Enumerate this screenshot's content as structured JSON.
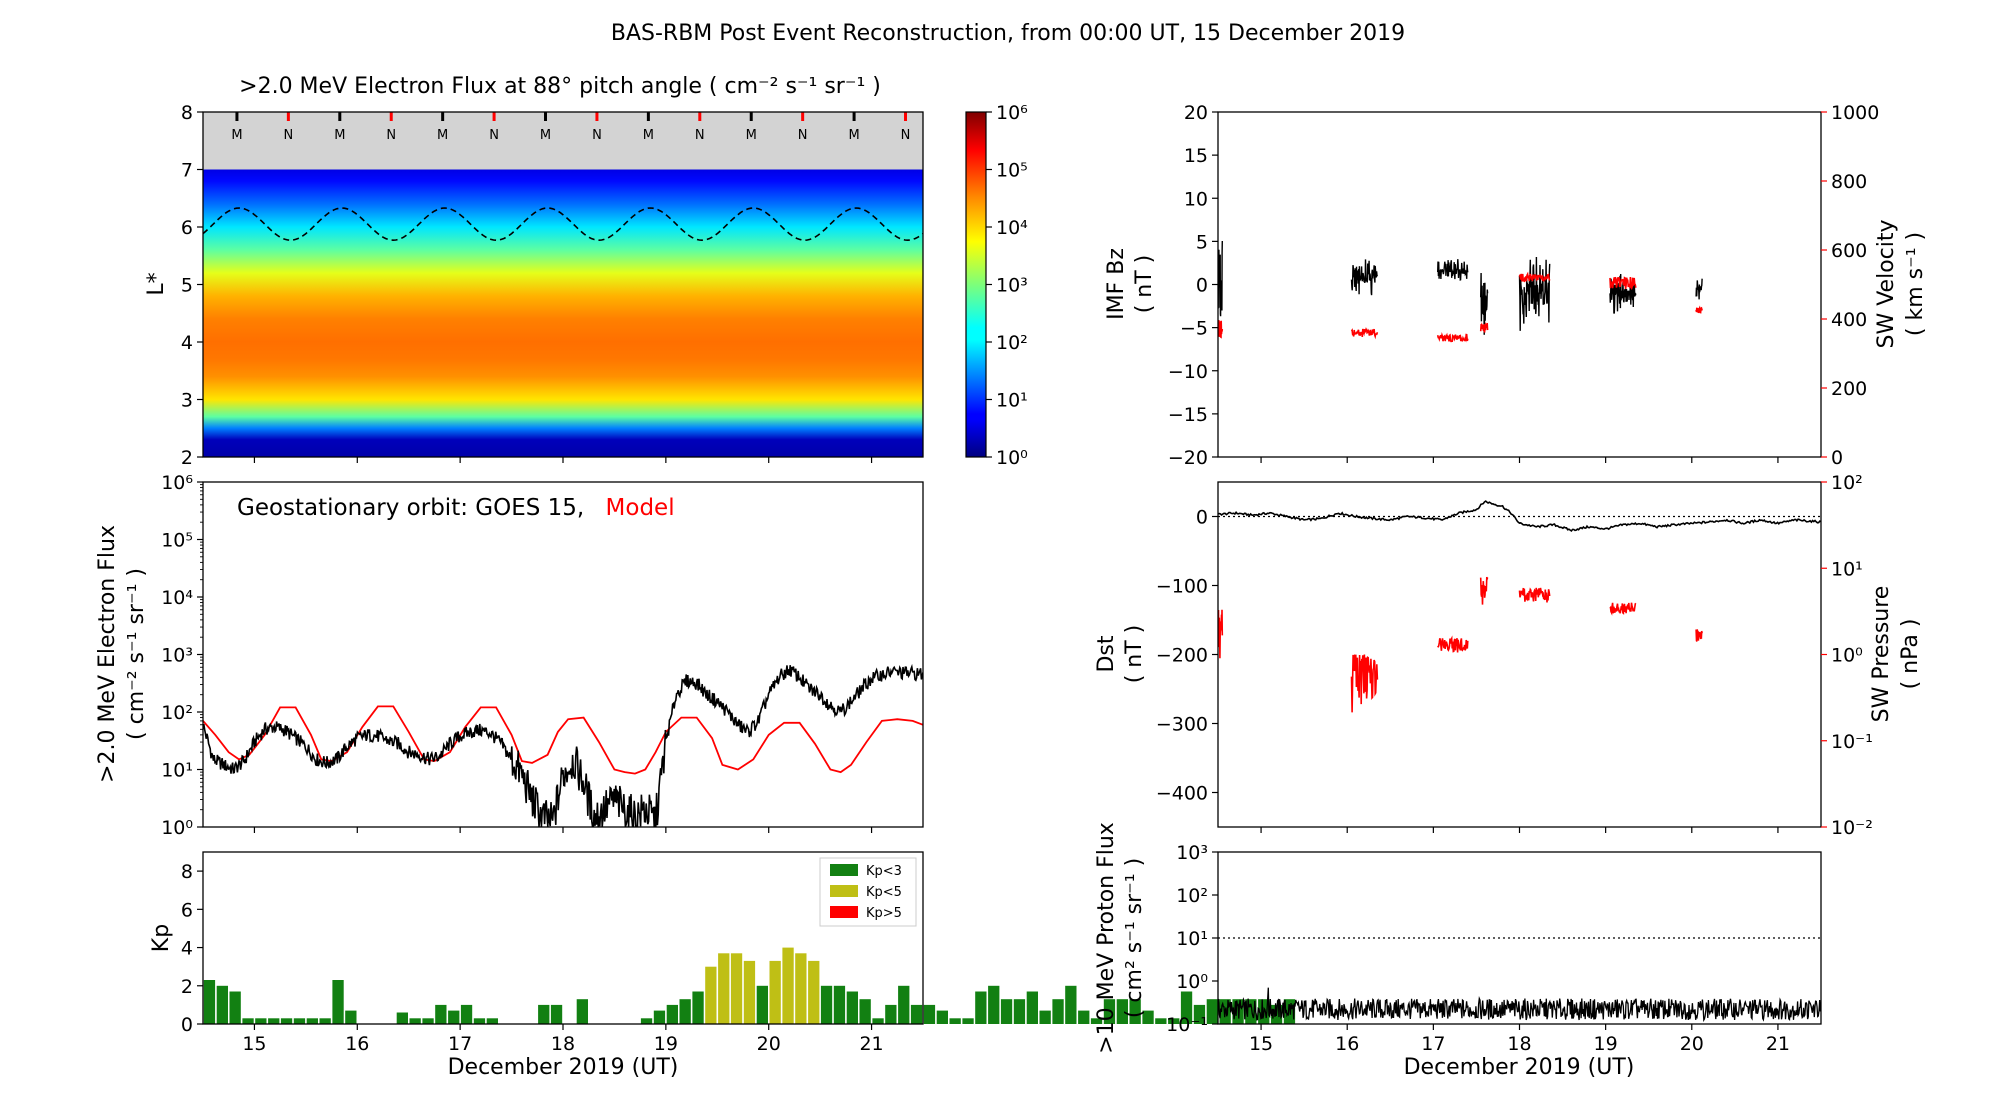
{
  "figure": {
    "title": "BAS-RBM Post Event Reconstruction, from 00:00 UT, 15 December 2019"
  },
  "colors": {
    "model": "#ff0000",
    "obs": "#000000",
    "kp_low": "#128012",
    "kp_mid": "#bfbf15",
    "kp_high": "#ff0000",
    "map_gray": "#d3d3d3"
  },
  "chart_data": [
    {
      "id": "lstar_map",
      "type": "heatmap",
      "title": ">2.0 MeV Electron Flux at 88° pitch angle ( cm⁻² s⁻¹ sr⁻¹ )",
      "ylabel": "L*",
      "ylim": [
        2,
        8
      ],
      "yticks": [
        "2",
        "3",
        "4",
        "5",
        "6",
        "7",
        "8"
      ],
      "xlim": [
        14.5,
        21.5
      ],
      "colorbar_ticks": [
        "10⁰",
        "10¹",
        "10²",
        "10³",
        "10⁴",
        "10⁵",
        "10⁶"
      ],
      "colorbar_range": [
        0,
        6
      ],
      "profile": {
        "L": [
          2.0,
          2.3,
          2.5,
          2.7,
          3.0,
          3.4,
          3.7,
          4.0,
          4.4,
          4.8,
          5.2,
          5.6,
          6.0,
          6.4,
          6.8,
          7.0
        ],
        "log_flux": [
          0.25,
          0.35,
          1.5,
          2.8,
          3.9,
          4.4,
          4.55,
          4.6,
          4.5,
          4.2,
          3.6,
          2.8,
          2.1,
          1.4,
          0.8,
          0.6
        ]
      },
      "data_limit_L": 7.0,
      "geo_orbit_L": {
        "mean": 6.05,
        "amplitude": 0.28,
        "period_days": 1.0,
        "phase_day": 14.85
      },
      "markers": {
        "labels": [
          "M",
          "N",
          "M",
          "N",
          "M",
          "N",
          "M",
          "N",
          "M",
          "N",
          "M",
          "N",
          "M",
          "N"
        ],
        "days": [
          14.83,
          15.33,
          15.83,
          16.33,
          16.83,
          17.33,
          17.83,
          18.33,
          18.83,
          19.33,
          19.83,
          20.33,
          20.83,
          21.33
        ]
      }
    },
    {
      "id": "geo_flux",
      "type": "line",
      "annotation": "Geostationary orbit:   GOES 15,",
      "annotation_model": "Model",
      "ylabel_line1": ">2.0 MeV Electron Flux",
      "ylabel_line2": "( cm⁻² s⁻¹ sr⁻¹ )",
      "ylim_log10": [
        0,
        6
      ],
      "yticks": [
        "10⁰",
        "10¹",
        "10²",
        "10³",
        "10⁴",
        "10⁵",
        "10⁶"
      ],
      "xlim": [
        14.5,
        21.5
      ],
      "series": [
        {
          "color": "#ff0000",
          "x": [
            14.5,
            14.62,
            14.75,
            14.85,
            14.95,
            15.1,
            15.25,
            15.4,
            15.55,
            15.65,
            15.75,
            15.9,
            16.05,
            16.2,
            16.35,
            16.5,
            16.65,
            16.75,
            16.9,
            17.05,
            17.2,
            17.35,
            17.5,
            17.6,
            17.7,
            17.85,
            17.95,
            18.05,
            18.2,
            18.35,
            18.5,
            18.6,
            18.7,
            18.8,
            18.9,
            19.0,
            19.15,
            19.3,
            19.45,
            19.55,
            19.7,
            19.85,
            20.0,
            20.15,
            20.3,
            20.45,
            20.6,
            20.7,
            20.8,
            20.95,
            21.1,
            21.25,
            21.4,
            21.5
          ],
          "y": [
            70,
            40,
            20,
            15,
            18,
            40,
            120,
            120,
            40,
            15,
            14,
            20,
            55,
            125,
            125,
            45,
            15,
            14,
            20,
            55,
            120,
            120,
            40,
            14,
            13,
            18,
            45,
            75,
            80,
            30,
            10,
            9,
            8.5,
            10,
            20,
            45,
            80,
            80,
            35,
            12,
            10,
            15,
            40,
            65,
            65,
            28,
            10,
            9,
            12,
            30,
            70,
            75,
            70,
            60
          ]
        },
        {
          "color": "#000000",
          "x": [
            14.5,
            14.6,
            14.7,
            14.8,
            14.9,
            15.0,
            15.1,
            15.2,
            15.3,
            15.4,
            15.5,
            15.6,
            15.7,
            15.8,
            15.9,
            16.0,
            16.1,
            16.2,
            16.3,
            16.4,
            16.5,
            16.6,
            16.7,
            16.8,
            16.9,
            17.0,
            17.1,
            17.2,
            17.3,
            17.4,
            17.5,
            17.6,
            17.7,
            17.8,
            17.9,
            18.0,
            18.1,
            18.2,
            18.3,
            18.4,
            18.5,
            18.6,
            18.7,
            18.8,
            18.9,
            19.0,
            19.1,
            19.2,
            19.3,
            19.4,
            19.5,
            19.6,
            19.7,
            19.8,
            19.9,
            20.0,
            20.1,
            20.2,
            20.3,
            20.4,
            20.5,
            20.6,
            20.7,
            20.8,
            20.9,
            21.0,
            21.1,
            21.2,
            21.3,
            21.4,
            21.5
          ],
          "y": [
            60,
            15,
            12,
            10,
            14,
            30,
            50,
            55,
            48,
            35,
            25,
            15,
            13,
            15,
            25,
            35,
            40,
            38,
            32,
            28,
            20,
            18,
            15,
            17,
            28,
            38,
            45,
            48,
            42,
            28,
            15,
            8,
            3,
            1.5,
            1.2,
            8,
            15,
            6,
            1.5,
            2,
            3,
            2,
            1.5,
            2,
            1.3,
            30,
            200,
            350,
            320,
            200,
            150,
            100,
            60,
            45,
            70,
            200,
            400,
            550,
            400,
            250,
            200,
            130,
            100,
            150,
            250,
            380,
            450,
            500,
            480,
            470,
            450
          ]
        }
      ]
    },
    {
      "id": "kp",
      "type": "bar",
      "ylabel": "Kp",
      "ylim": [
        0,
        9
      ],
      "yticks": [
        "0",
        "2",
        "4",
        "6",
        "8"
      ],
      "xlim": [
        14.5,
        21.5
      ],
      "bin_days": 0.125,
      "legend": [
        "Kp<3",
        "Kp<5",
        "Kp>5"
      ],
      "legend_position": "top-right",
      "values": [
        2.3,
        2.0,
        1.7,
        0.3,
        0.3,
        0.3,
        0.3,
        0.3,
        0.3,
        0.3,
        2.3,
        0.7,
        0.0,
        0.0,
        0.0,
        0.6,
        0.3,
        0.3,
        1.0,
        0.7,
        1.0,
        0.3,
        0.3,
        0.0,
        0.0,
        0.0,
        1.0,
        1.0,
        0.0,
        1.3,
        0.0,
        0.0,
        0.0,
        0.0,
        0.3,
        0.7,
        1.0,
        1.3,
        1.7,
        3.0,
        3.7,
        3.7,
        3.3,
        2.0,
        3.3,
        4.0,
        3.7,
        3.3,
        2.0,
        2.0,
        1.7,
        1.3,
        0.3,
        1.0,
        2.0,
        1.0,
        1.0,
        0.7,
        0.3,
        0.3,
        1.7,
        2.0,
        1.3,
        1.3,
        1.7,
        0.7,
        1.3,
        2.0,
        0.7,
        0.3,
        1.3,
        1.3,
        1.3,
        0.7,
        0.3,
        0.3,
        1.7,
        1.0,
        1.3,
        1.3,
        1.3,
        1.3,
        1.3,
        1.0,
        1.3
      ]
    },
    {
      "id": "imf_sw",
      "type": "line",
      "ylabel_line1": "IMF Bz",
      "ylabel_line2": "( nT )",
      "ylim": [
        -20,
        20
      ],
      "yticks": [
        "−20",
        "−15",
        "−10",
        "−5",
        "0",
        "5",
        "10",
        "15",
        "20"
      ],
      "ylabel2_line1": "SW Velocity",
      "ylabel2_line2": "( km s⁻¹ )",
      "ylim2": [
        0,
        1000
      ],
      "yticks2": [
        "0",
        "200",
        "400",
        "600",
        "800",
        "1000"
      ],
      "xlim": [
        14.5,
        21.5
      ],
      "bz_segments": [
        {
          "x0": 14.5,
          "x1": 14.55,
          "center": 0.0,
          "spread": 5.5
        },
        {
          "x0": 16.05,
          "x1": 16.35,
          "center": 1.0,
          "spread": 2.5
        },
        {
          "x0": 17.05,
          "x1": 17.4,
          "center": 1.5,
          "spread": 1.5
        },
        {
          "x0": 17.55,
          "x1": 17.63,
          "center": -2.0,
          "spread": 4.5
        },
        {
          "x0": 18.0,
          "x1": 18.35,
          "center": -1.5,
          "spread": 5.0
        },
        {
          "x0": 19.05,
          "x1": 19.35,
          "center": -1.0,
          "spread": 2.5
        },
        {
          "x0": 20.05,
          "x1": 20.12,
          "center": -0.5,
          "spread": 1.5
        }
      ],
      "sw_segments": [
        {
          "x0": 14.5,
          "x1": 14.55,
          "value": 375,
          "spread": 30
        },
        {
          "x0": 16.05,
          "x1": 16.35,
          "value": 360,
          "spread": 12
        },
        {
          "x0": 17.05,
          "x1": 17.4,
          "value": 345,
          "spread": 10
        },
        {
          "x0": 17.55,
          "x1": 17.63,
          "value": 375,
          "spread": 15
        },
        {
          "x0": 18.0,
          "x1": 18.35,
          "value": 520,
          "spread": 12
        },
        {
          "x0": 19.05,
          "x1": 19.35,
          "value": 505,
          "spread": 18
        },
        {
          "x0": 20.05,
          "x1": 20.12,
          "value": 425,
          "spread": 8
        }
      ]
    },
    {
      "id": "dst_pressure",
      "type": "line",
      "ylabel_line1": "Dst",
      "ylabel_line2": "( nT )",
      "ylim": [
        -450,
        50
      ],
      "yticks": [
        "−400",
        "−300",
        "−200",
        "−100",
        "0"
      ],
      "ylabel2_line1": "SW Pressure",
      "ylabel2_line2": "( nPa )",
      "ylim2_log10": [
        -2,
        2
      ],
      "yticks2": [
        "10⁻²",
        "10⁻¹",
        "10⁰",
        "10¹",
        "10²"
      ],
      "xlim": [
        14.5,
        21.5
      ],
      "dst": {
        "x": [
          14.5,
          14.7,
          14.9,
          15.1,
          15.3,
          15.5,
          15.7,
          15.9,
          16.1,
          16.3,
          16.5,
          16.7,
          16.9,
          17.1,
          17.3,
          17.5,
          17.6,
          17.7,
          17.8,
          17.9,
          18.0,
          18.2,
          18.4,
          18.6,
          18.8,
          19.0,
          19.2,
          19.4,
          19.6,
          19.8,
          20.0,
          20.2,
          20.4,
          20.6,
          20.8,
          21.0,
          21.2,
          21.5
        ],
        "y": [
          3,
          5,
          2,
          5,
          0,
          -5,
          -3,
          5,
          0,
          -3,
          -5,
          0,
          -2,
          -5,
          5,
          10,
          22,
          18,
          15,
          5,
          -10,
          -15,
          -12,
          -20,
          -15,
          -18,
          -12,
          -10,
          -15,
          -12,
          -10,
          -8,
          -5,
          -10,
          -5,
          -10,
          -5,
          -8
        ]
      },
      "pressure_segments": [
        {
          "x0": 14.5,
          "x1": 14.55,
          "value": 2.0,
          "spread": 1.5
        },
        {
          "x0": 16.05,
          "x1": 16.35,
          "value": 0.6,
          "spread": 0.4
        },
        {
          "x0": 17.05,
          "x1": 17.4,
          "value": 1.3,
          "spread": 0.25
        },
        {
          "x0": 17.55,
          "x1": 17.63,
          "value": 6.0,
          "spread": 2.5
        },
        {
          "x0": 18.0,
          "x1": 18.35,
          "value": 5.0,
          "spread": 1.0
        },
        {
          "x0": 19.05,
          "x1": 19.35,
          "value": 3.5,
          "spread": 0.5
        },
        {
          "x0": 20.05,
          "x1": 20.12,
          "value": 1.7,
          "spread": 0.3
        }
      ]
    },
    {
      "id": "proton_flux",
      "type": "line",
      "ylabel_line1": ">10 MeV Proton Flux",
      "ylabel_line2": "( cm² s⁻¹ sr⁻¹ )",
      "ylim_log10": [
        -1,
        3
      ],
      "yticks": [
        "10⁻¹",
        "10⁰",
        "10¹",
        "10²",
        "10³"
      ],
      "threshold": 10,
      "baseline": 0.22,
      "xlim": [
        14.5,
        21.5
      ]
    }
  ],
  "x_axis": {
    "ticks": [
      "15",
      "16",
      "17",
      "18",
      "19",
      "20",
      "21"
    ],
    "label": "December 2019 (UT)"
  }
}
